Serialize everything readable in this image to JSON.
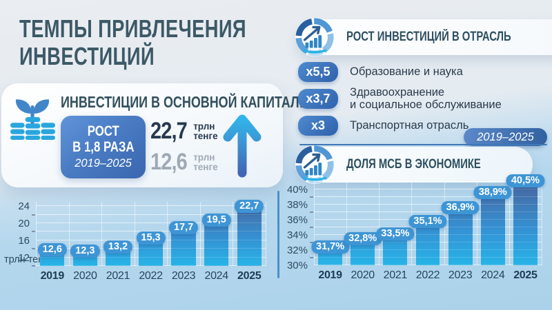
{
  "page": {
    "title_line1": "ТЕМПЫ ПРИВЛЕЧЕНИЯ",
    "title_line2": "ИНВЕСТИЦИЙ"
  },
  "capital_card": {
    "heading": "ИНВЕСТИЦИИ В ОСНОВНОЙ КАПИТАЛ:",
    "growth_box": {
      "line1": "РОСТ",
      "line2": "В 1,8 РАЗА",
      "period": "2019–2025"
    },
    "value_new": {
      "amount": "22,7",
      "unit_line1": "трлн",
      "unit_line2": "тенге"
    },
    "value_old": {
      "amount": "12,6",
      "unit_line1": "трлн",
      "unit_line2": "тенге"
    },
    "icons": [
      "sprout-coins-icon",
      "growth-arrow-up-icon"
    ]
  },
  "industry_growth": {
    "heading": "РОСТ ИНВЕСТИЦИЙ В ОТРАСЛЬ",
    "icon": "donut-chart-growth-icon",
    "items": [
      {
        "factor": "x5,5",
        "lines": [
          "Образование и наука"
        ]
      },
      {
        "factor": "x3,7",
        "lines": [
          "Здравоохранение",
          "и социальное обслуживание"
        ]
      },
      {
        "factor": "x3",
        "lines": [
          "Транспортная отрасль"
        ]
      }
    ],
    "period": "2019–2025"
  },
  "chart_data": [
    {
      "type": "bar",
      "title": "",
      "ylabel": "трлн тенге",
      "categories": [
        "2019",
        "2020",
        "2021",
        "2022",
        "2023",
        "2024",
        "2025"
      ],
      "values": [
        12.6,
        12.3,
        13.2,
        15.3,
        17.7,
        19.5,
        22.7
      ],
      "value_labels": [
        "12,6",
        "12,3",
        "13,2",
        "15,3",
        "17,7",
        "19,5",
        "22,7"
      ],
      "ylim": [
        10,
        25
      ],
      "ytick_values": [
        12,
        16,
        20,
        24
      ],
      "ytick_labels": [
        "12",
        "16",
        "20",
        "24"
      ],
      "yticks_minor": [
        10,
        14,
        18,
        22
      ],
      "grid_step": 2,
      "grid": true,
      "legend": "none"
    },
    {
      "type": "bar",
      "title": "ДОЛЯ МСБ В ЭКОНОМИКЕ",
      "ylabel": "",
      "categories": [
        "2019",
        "2020",
        "2021",
        "2022",
        "2023",
        "2024",
        "2025"
      ],
      "values": [
        31.7,
        32.8,
        33.5,
        35.1,
        36.9,
        38.9,
        40.5
      ],
      "value_labels": [
        "31,7%",
        "32,8%",
        "33,5%",
        "35,1%",
        "36,9%",
        "38,9%",
        "40,5%"
      ],
      "ylim": [
        30,
        41
      ],
      "ytick_values": [
        30,
        32,
        34,
        36,
        38,
        40
      ],
      "ytick_labels": [
        "30%",
        "32%",
        "34%",
        "36%",
        "38%",
        "40%"
      ],
      "yticks_minor": [
        31,
        33,
        35,
        37,
        39
      ],
      "grid_step": 1,
      "grid": true,
      "legend": "none"
    }
  ],
  "colors": {
    "background_top": "#eaedf1",
    "background_bottom": "#abd2ea",
    "title_teal": "#3c5966",
    "heading_teal": "#33505e",
    "navy_text": "#27394e",
    "gray_text": "#9fa9b4",
    "badge_blue": "#3e95d5",
    "deep_blue": "#33609f",
    "cyan": "#29b2e6",
    "bar_top": "#48669e",
    "bar_mid": "#3590d2",
    "bar_bottom": "#27b4e7",
    "divider_blue": "#3e78b8"
  }
}
